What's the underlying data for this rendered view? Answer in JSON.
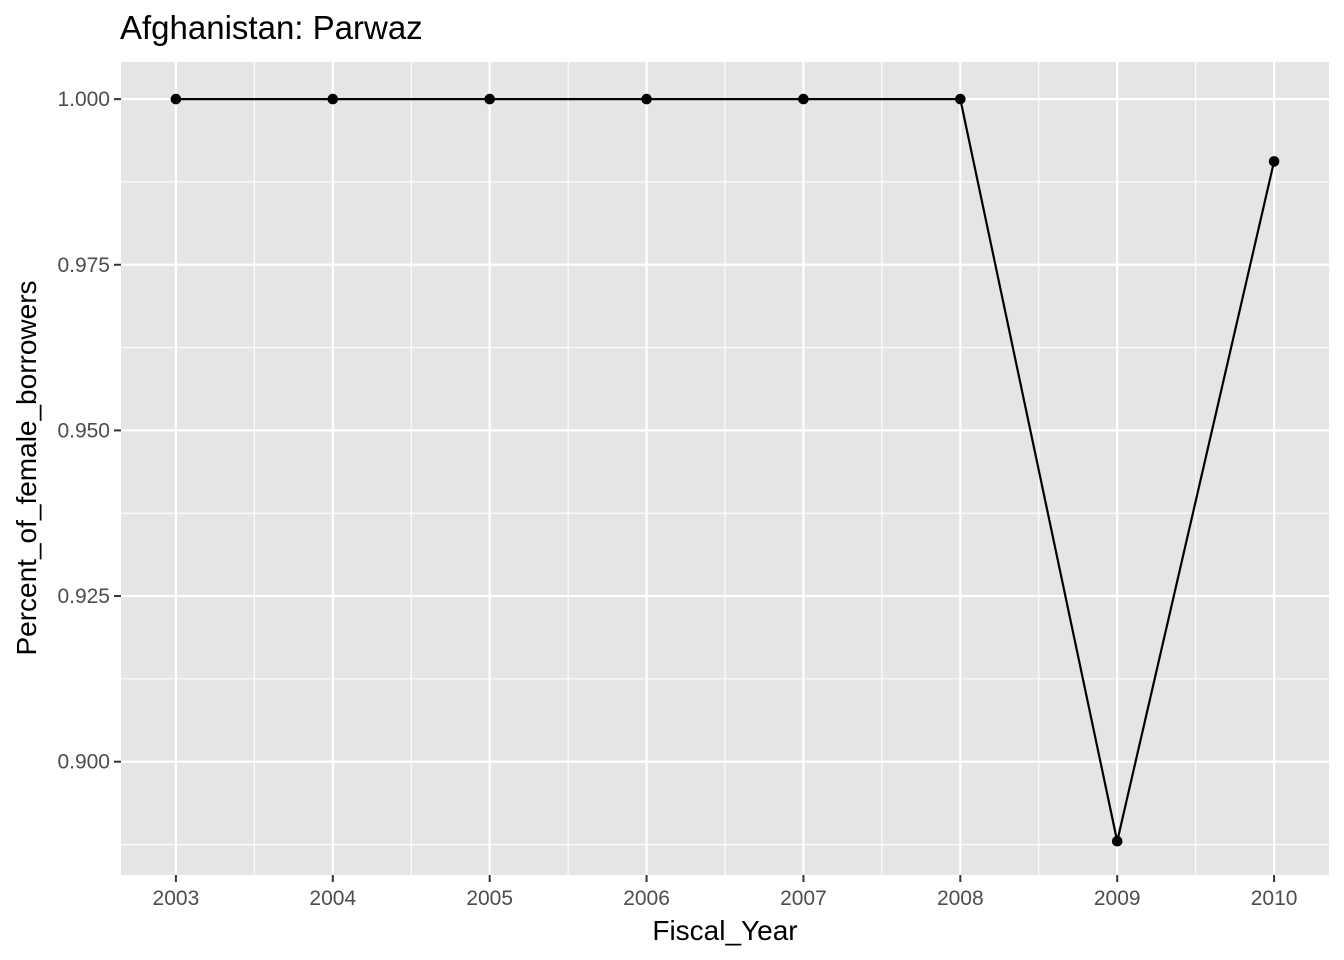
{
  "chart_data": {
    "type": "line",
    "title": "Afghanistan:  Parwaz",
    "xlabel": "Fiscal_Year",
    "ylabel": "Percent_of_female_borrowers",
    "x": [
      2003,
      2004,
      2005,
      2006,
      2007,
      2008,
      2009,
      2010
    ],
    "series": [
      {
        "values": [
          1.0,
          1.0,
          1.0,
          1.0,
          1.0,
          1.0,
          0.888,
          0.9906
        ]
      }
    ],
    "x_ticks": [
      "2003",
      "2004",
      "2005",
      "2006",
      "2007",
      "2008",
      "2009",
      "2010"
    ],
    "y_ticks": [
      0.9,
      0.925,
      0.95,
      0.975,
      1.0
    ],
    "y_tick_labels": [
      "0.900",
      "0.925",
      "0.950",
      "0.975",
      "1.000"
    ],
    "xlim": [
      2002.65,
      2010.35
    ],
    "ylim": [
      0.8829,
      1.0056
    ],
    "grid": true,
    "legend": "none",
    "colors": {
      "panel_background": "#e5e5e5",
      "grid": "#ffffff",
      "line": "#000000",
      "point": "#000000",
      "tick_text": "#4d4d4d"
    }
  }
}
